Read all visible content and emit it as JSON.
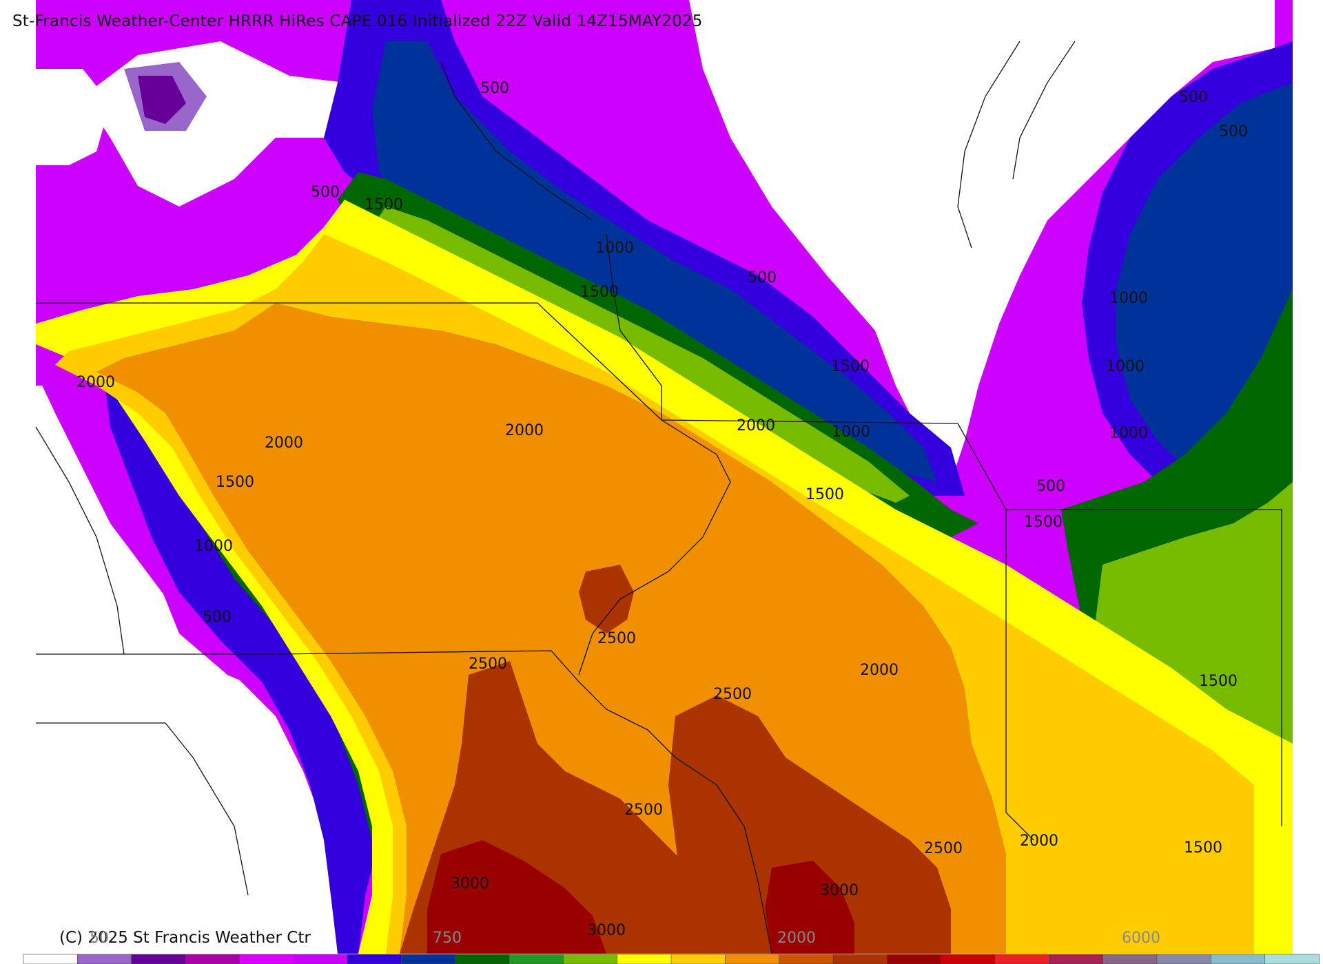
{
  "title": "St-Francis Weather-Center HRRR HiRes CAPE  016 Initialized  22Z Valid 14Z15MAY2025",
  "copyright": "(C) 2025 St Francis Weather Ctr",
  "contour_labels": [
    {
      "text": "500"
    },
    {
      "text": "500"
    },
    {
      "text": "500"
    },
    {
      "text": "500"
    },
    {
      "text": "500"
    },
    {
      "text": "500"
    },
    {
      "text": "500"
    },
    {
      "text": "1500"
    },
    {
      "text": "1000"
    },
    {
      "text": "1500"
    },
    {
      "text": "1000"
    },
    {
      "text": "1500"
    },
    {
      "text": "2000"
    },
    {
      "text": "2000"
    },
    {
      "text": "2000"
    },
    {
      "text": "2000"
    },
    {
      "text": "1500"
    },
    {
      "text": "1000"
    },
    {
      "text": "1000"
    },
    {
      "text": "1000"
    },
    {
      "text": "1000"
    },
    {
      "text": "1500"
    },
    {
      "text": "1500"
    },
    {
      "text": "1500"
    },
    {
      "text": "1500"
    },
    {
      "text": "2500"
    },
    {
      "text": "2500"
    },
    {
      "text": "2500"
    },
    {
      "text": "2500"
    },
    {
      "text": "2500"
    },
    {
      "text": "2000"
    },
    {
      "text": "2000"
    },
    {
      "text": "3000"
    },
    {
      "text": "3000"
    },
    {
      "text": "3000"
    }
  ],
  "colorbar": {
    "colors": [
      "#ffffff",
      "#9966cc",
      "#660099",
      "#aa00aa",
      "#dd00ff",
      "#cc00ff",
      "#3300dd",
      "#003399",
      "#006600",
      "#229922",
      "#77bb00",
      "#ffff00",
      "#ffcc00",
      "#f09000",
      "#cc5500",
      "#aa3300",
      "#990000",
      "#cc0000",
      "#ee2222",
      "#aa2255",
      "#886688",
      "#8888aa",
      "#88bbcc",
      "#aadddd"
    ],
    "tick_labels": [
      "50",
      "750",
      "2000",
      "6000"
    ]
  },
  "legend_colors": {
    "white": "#ffffff",
    "lavender": "#9966cc",
    "purple_dark": "#660099",
    "magenta": "#cc00ff",
    "blue": "#3300dd",
    "navy": "#003399",
    "green_dark": "#006600",
    "green": "#77bb00",
    "yellow": "#ffff00",
    "gold": "#ffcc00",
    "orange": "#f09000",
    "brown": "#aa3300",
    "red_dark": "#990000"
  }
}
